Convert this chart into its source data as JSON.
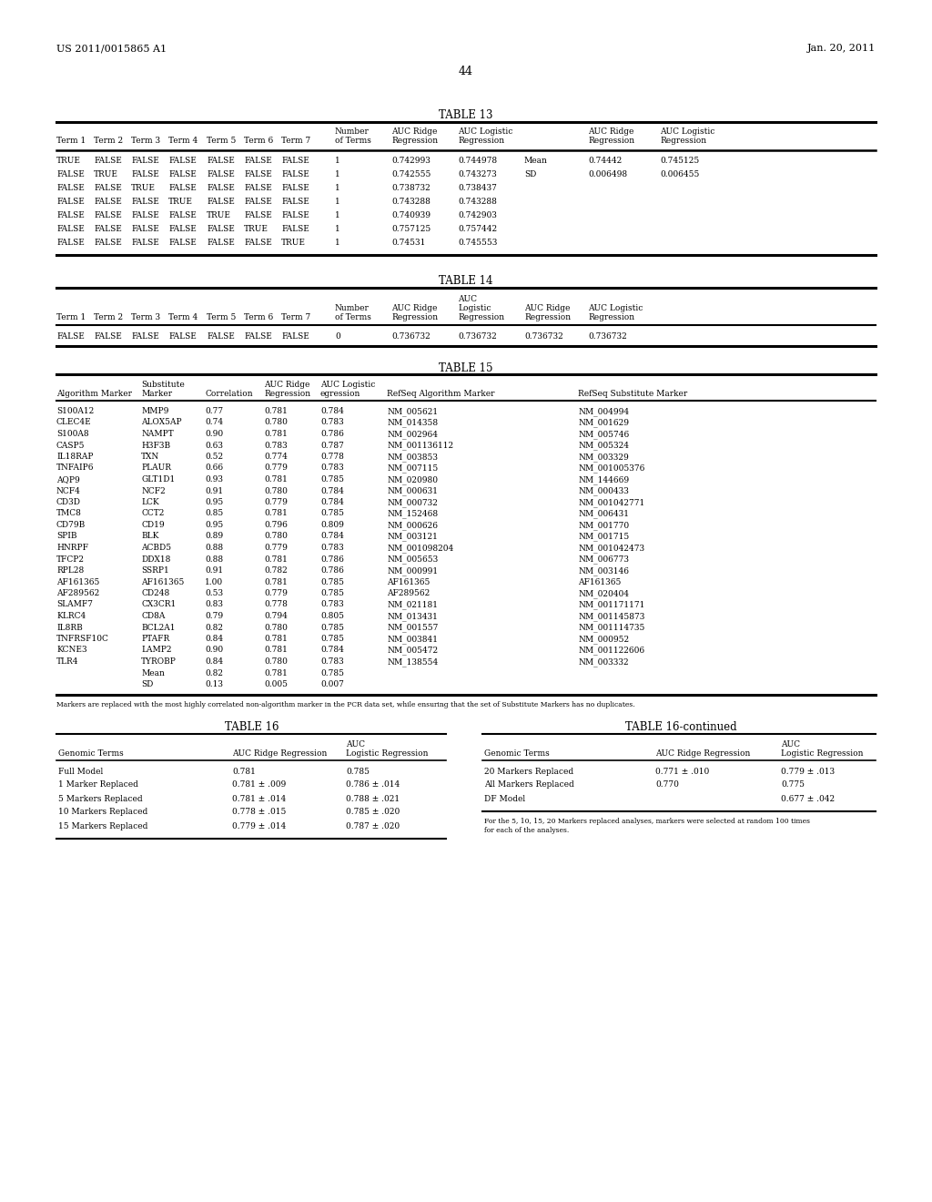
{
  "header_left": "US 2011/0015865 A1",
  "header_right": "Jan. 20, 2011",
  "page_number": "44",
  "background_color": "#ffffff",
  "table13_title": "TABLE 13",
  "table13_rows": [
    [
      "TRUE",
      "FALSE",
      "FALSE",
      "FALSE",
      "FALSE",
      "FALSE",
      "FALSE",
      "1",
      "0.742993",
      "0.744978",
      "Mean",
      "0.74442",
      "0.745125"
    ],
    [
      "FALSE",
      "TRUE",
      "FALSE",
      "FALSE",
      "FALSE",
      "FALSE",
      "FALSE",
      "1",
      "0.742555",
      "0.743273",
      "SD",
      "0.006498",
      "0.006455"
    ],
    [
      "FALSE",
      "FALSE",
      "TRUE",
      "FALSE",
      "FALSE",
      "FALSE",
      "FALSE",
      "1",
      "0.738732",
      "0.738437",
      "",
      "",
      ""
    ],
    [
      "FALSE",
      "FALSE",
      "FALSE",
      "TRUE",
      "FALSE",
      "FALSE",
      "FALSE",
      "1",
      "0.743288",
      "0.743288",
      "",
      "",
      ""
    ],
    [
      "FALSE",
      "FALSE",
      "FALSE",
      "FALSE",
      "TRUE",
      "FALSE",
      "FALSE",
      "1",
      "0.740939",
      "0.742903",
      "",
      "",
      ""
    ],
    [
      "FALSE",
      "FALSE",
      "FALSE",
      "FALSE",
      "FALSE",
      "TRUE",
      "FALSE",
      "1",
      "0.757125",
      "0.757442",
      "",
      "",
      ""
    ],
    [
      "FALSE",
      "FALSE",
      "FALSE",
      "FALSE",
      "FALSE",
      "FALSE",
      "TRUE",
      "1",
      "0.74531",
      "0.745553",
      "",
      "",
      ""
    ]
  ],
  "table14_title": "TABLE 14",
  "table14_rows": [
    [
      "FALSE",
      "FALSE",
      "FALSE",
      "FALSE",
      "FALSE",
      "FALSE",
      "FALSE",
      "0",
      "0.736732",
      "0.736732",
      "0.736732",
      "0.736732"
    ]
  ],
  "table15_title": "TABLE 15",
  "table15_rows": [
    [
      "S100A12",
      "MMP9",
      "0.77",
      "0.781",
      "0.784",
      "NM_005621",
      "NM_004994"
    ],
    [
      "CLEC4E",
      "ALOX5AP",
      "0.74",
      "0.780",
      "0.783",
      "NM_014358",
      "NM_001629"
    ],
    [
      "S100A8",
      "NAMPT",
      "0.90",
      "0.781",
      "0.786",
      "NM_002964",
      "NM_005746"
    ],
    [
      "CASP5",
      "H3F3B",
      "0.63",
      "0.783",
      "0.787",
      "NM_001136112",
      "NM_005324"
    ],
    [
      "IL18RAP",
      "TXN",
      "0.52",
      "0.774",
      "0.778",
      "NM_003853",
      "NM_003329"
    ],
    [
      "TNFAIP6",
      "PLAUR",
      "0.66",
      "0.779",
      "0.783",
      "NM_007115",
      "NM_001005376"
    ],
    [
      "AQP9",
      "GLT1D1",
      "0.93",
      "0.781",
      "0.785",
      "NM_020980",
      "NM_144669"
    ],
    [
      "NCF4",
      "NCF2",
      "0.91",
      "0.780",
      "0.784",
      "NM_000631",
      "NM_000433"
    ],
    [
      "CD3D",
      "LCK",
      "0.95",
      "0.779",
      "0.784",
      "NM_000732",
      "NM_001042771"
    ],
    [
      "TMC8",
      "CCT2",
      "0.85",
      "0.781",
      "0.785",
      "NM_152468",
      "NM_006431"
    ],
    [
      "CD79B",
      "CD19",
      "0.95",
      "0.796",
      "0.809",
      "NM_000626",
      "NM_001770"
    ],
    [
      "SPIB",
      "BLK",
      "0.89",
      "0.780",
      "0.784",
      "NM_003121",
      "NM_001715"
    ],
    [
      "HNRPF",
      "ACBD5",
      "0.88",
      "0.779",
      "0.783",
      "NM_001098204",
      "NM_001042473"
    ],
    [
      "TFCP2",
      "DDX18",
      "0.88",
      "0.781",
      "0.786",
      "NM_005653",
      "NM_006773"
    ],
    [
      "RPL28",
      "SSRP1",
      "0.91",
      "0.782",
      "0.786",
      "NM_000991",
      "NM_003146"
    ],
    [
      "AF161365",
      "AF161365",
      "1.00",
      "0.781",
      "0.785",
      "AF161365",
      "AF161365"
    ],
    [
      "AF289562",
      "CD248",
      "0.53",
      "0.779",
      "0.785",
      "AF289562",
      "NM_020404"
    ],
    [
      "SLAMF7",
      "CX3CR1",
      "0.83",
      "0.778",
      "0.783",
      "NM_021181",
      "NM_001171171"
    ],
    [
      "KLRC4",
      "CD8A",
      "0.79",
      "0.794",
      "0.805",
      "NM_013431",
      "NM_001145873"
    ],
    [
      "IL8RB",
      "BCL2A1",
      "0.82",
      "0.780",
      "0.785",
      "NM_001557",
      "NM_001114735"
    ],
    [
      "TNFRSF10C",
      "PTAFR",
      "0.84",
      "0.781",
      "0.785",
      "NM_003841",
      "NM_000952"
    ],
    [
      "KCNE3",
      "LAMP2",
      "0.90",
      "0.781",
      "0.784",
      "NM_005472",
      "NM_001122606"
    ],
    [
      "TLR4",
      "TYROBP",
      "0.84",
      "0.780",
      "0.783",
      "NM_138554",
      "NM_003332"
    ],
    [
      "",
      "Mean",
      "0.82",
      "0.781",
      "0.785",
      "",
      ""
    ],
    [
      "",
      "SD",
      "0.13",
      "0.005",
      "0.007",
      "",
      ""
    ]
  ],
  "table15_footnote": "Markers are replaced with the most highly correlated non-algorithm marker in the PCR data set, while ensuring that the set of Substitute Markers has no duplicates.",
  "table16_title": "TABLE 16",
  "table16cont_title": "TABLE 16-continued",
  "table16_rows": [
    [
      "Full Model",
      "0.781",
      "0.785"
    ],
    [
      "1 Marker Replaced",
      "0.781 ± .009",
      "0.786 ± .014"
    ],
    [
      "5 Markers Replaced",
      "0.781 ± .014",
      "0.788 ± .021"
    ],
    [
      "10 Markers Replaced",
      "0.778 ± .015",
      "0.785 ± .020"
    ],
    [
      "15 Markers Replaced",
      "0.779 ± .014",
      "0.787 ± .020"
    ]
  ],
  "table16cont_rows": [
    [
      "20 Markers Replaced",
      "0.771 ± .010",
      "0.779 ± .013"
    ],
    [
      "All Markers Replaced",
      "0.770",
      "0.775"
    ],
    [
      "DF Model",
      "",
      "0.677 ± .042"
    ]
  ],
  "table16_footnote": "For the 5, 10, 15, 20 Markers replaced analyses, markers were selected at random 100 times\nfor each of the analyses."
}
